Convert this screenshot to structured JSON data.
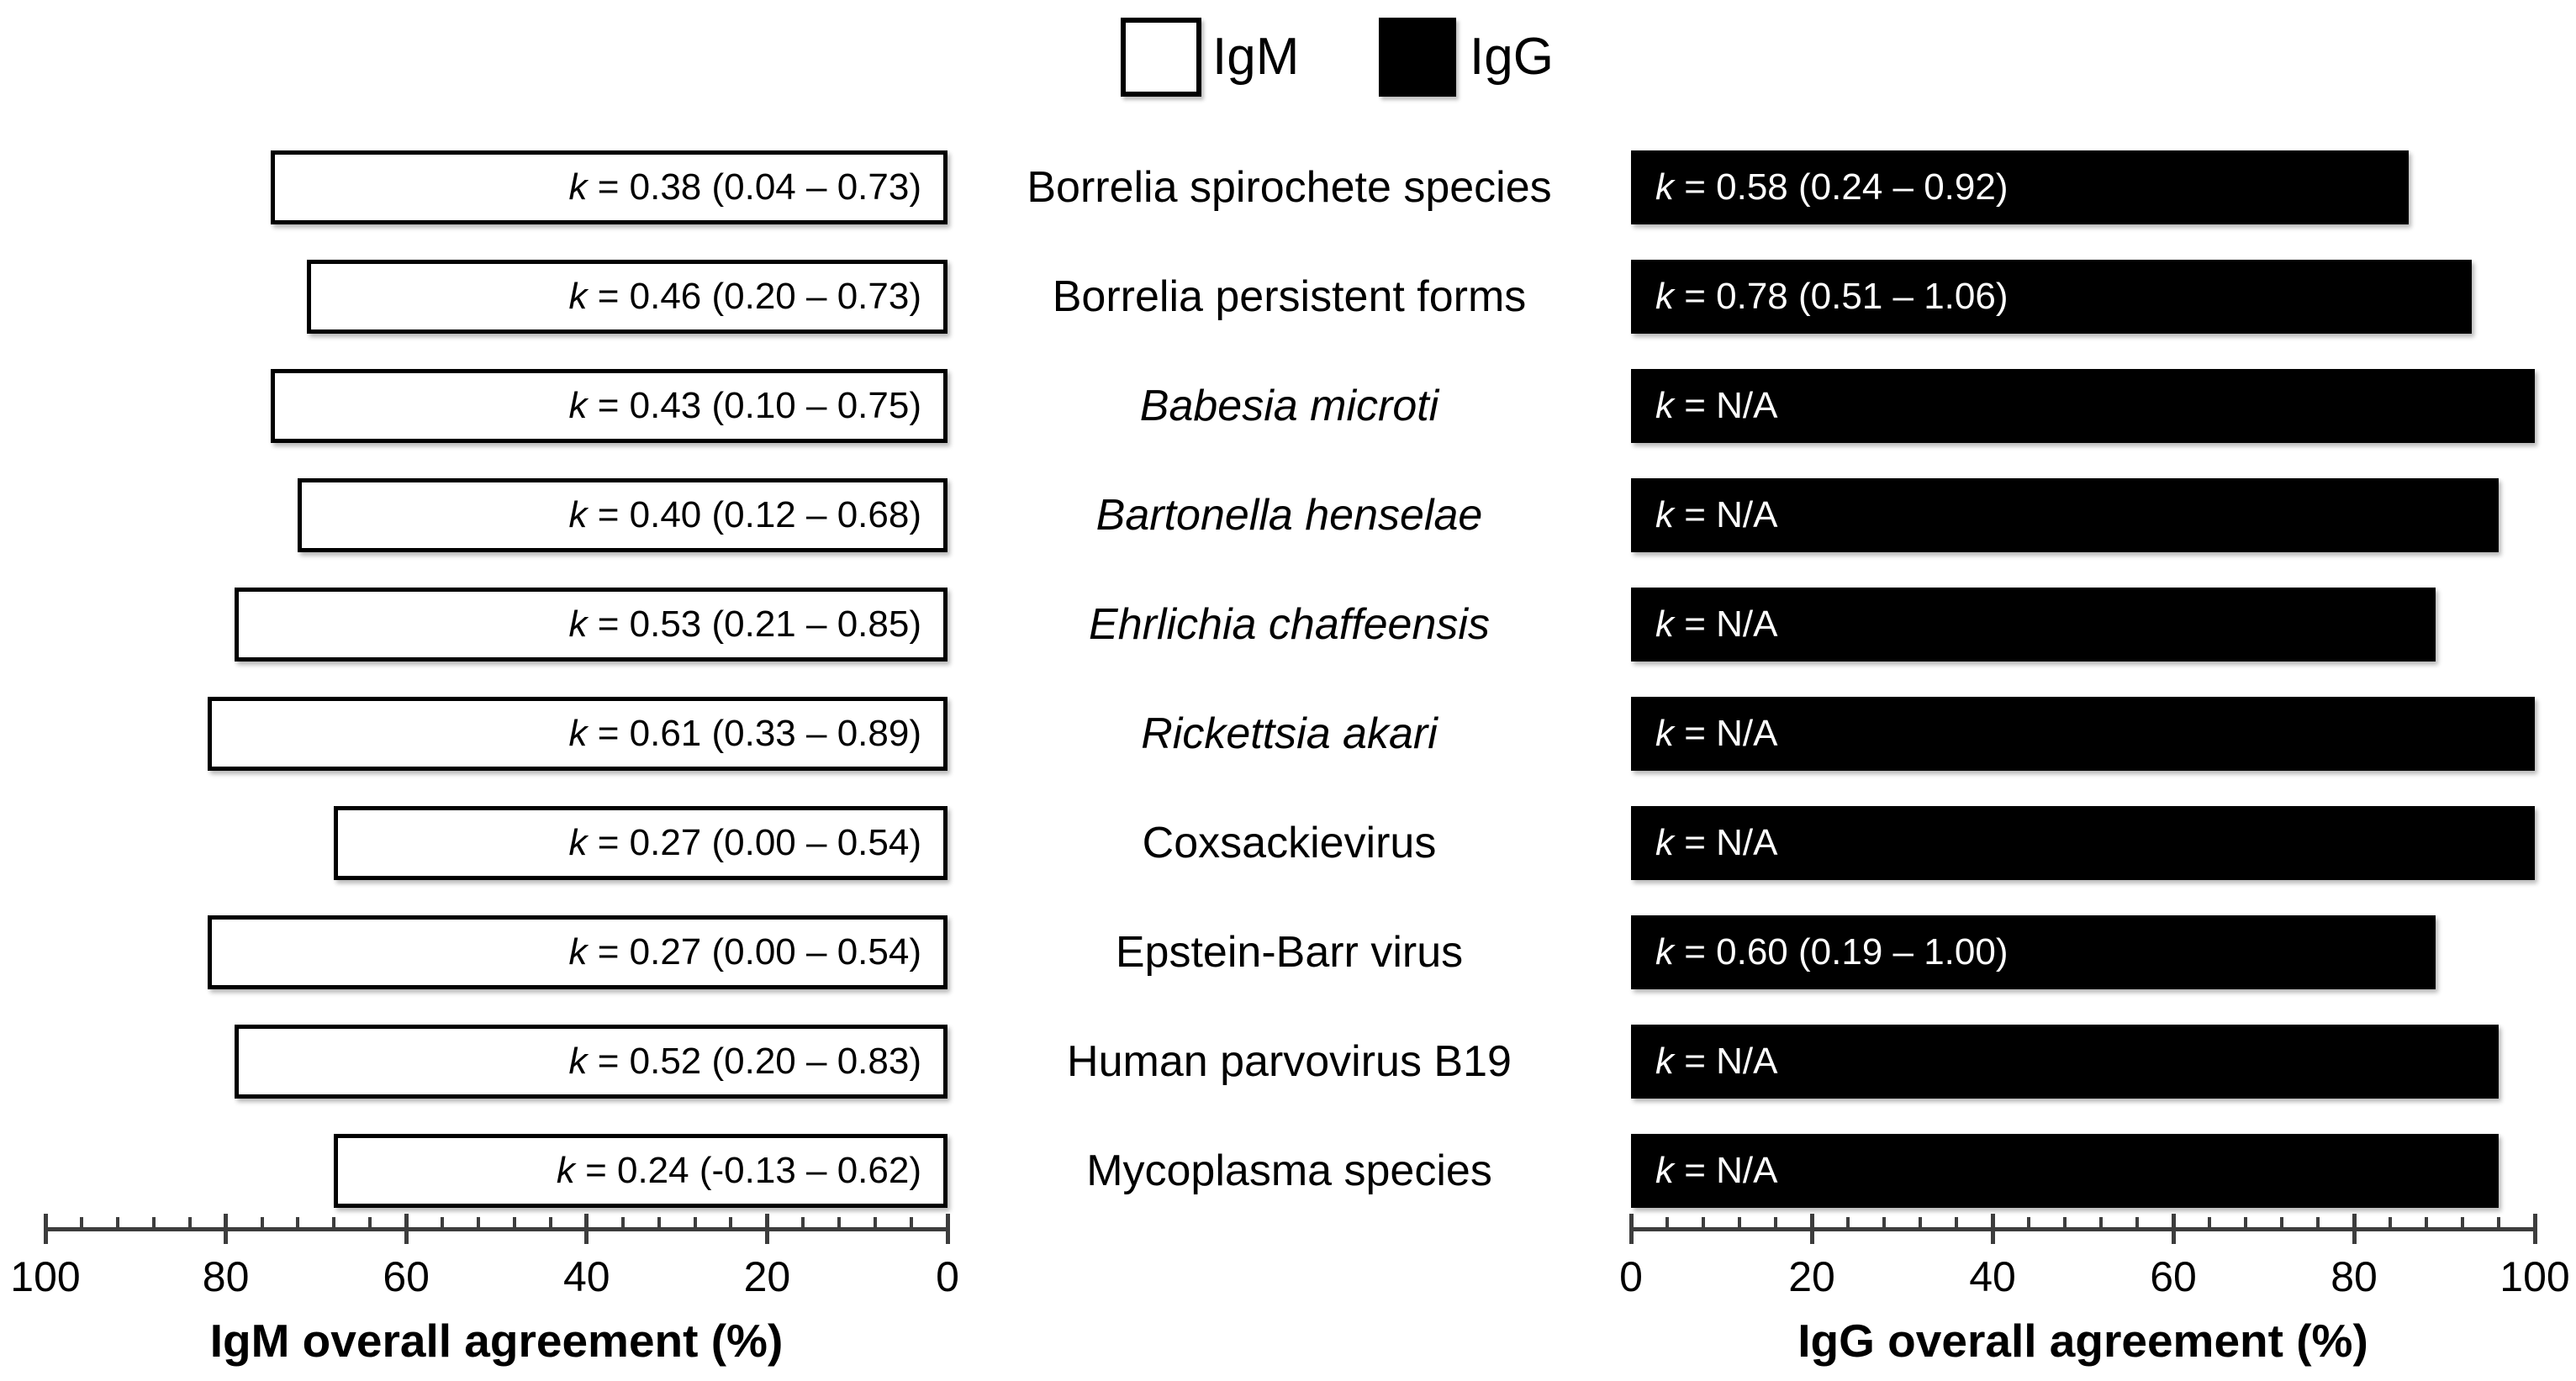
{
  "legend": {
    "items": [
      {
        "label": "IgM",
        "fill": "#ffffff"
      },
      {
        "label": "IgG",
        "fill": "#000000"
      }
    ]
  },
  "colors": {
    "igm_bar_fill": "#ffffff",
    "igg_bar_fill": "#000000",
    "bar_border": "#000000",
    "axis": "#3d3d3d",
    "igm_k_text": "#000000",
    "igg_k_text": "#ffffff"
  },
  "chart_data": {
    "type": "bar",
    "subtype": "back-to-back horizontal (butterfly)",
    "grid": false,
    "legend_position": "top-center",
    "axes": {
      "left": {
        "title": "IgM overall agreement (%)",
        "tick_labels": [
          "100",
          "80",
          "60",
          "40",
          "20",
          "0"
        ],
        "range": [
          0,
          100
        ],
        "reversed": true,
        "minor_tick_step": 4
      },
      "right": {
        "title": "IgG overall agreement (%)",
        "tick_labels": [
          "0",
          "20",
          "40",
          "60",
          "80",
          "100"
        ],
        "range": [
          0,
          100
        ],
        "reversed": false,
        "minor_tick_step": 4
      }
    },
    "rows": [
      {
        "label": "Borrelia spirochete species",
        "italic": false,
        "igm_pct": 75,
        "igm_k": "k = 0.38 (0.04 – 0.73)",
        "igg_pct": 86,
        "igg_k": "k = 0.58 (0.24 – 0.92)"
      },
      {
        "label": "Borrelia persistent forms",
        "italic": false,
        "igm_pct": 71,
        "igm_k": "k = 0.46 (0.20 – 0.73)",
        "igg_pct": 93,
        "igg_k": "k = 0.78 (0.51 – 1.06)"
      },
      {
        "label": "Babesia microti",
        "italic": true,
        "igm_pct": 75,
        "igm_k": "k = 0.43 (0.10 – 0.75)",
        "igg_pct": 100,
        "igg_k": "k = N/A"
      },
      {
        "label": "Bartonella henselae",
        "italic": true,
        "igm_pct": 72,
        "igm_k": "k = 0.40 (0.12 – 0.68)",
        "igg_pct": 96,
        "igg_k": "k = N/A"
      },
      {
        "label": "Ehrlichia chaffeensis",
        "italic": true,
        "igm_pct": 79,
        "igm_k": "k = 0.53 (0.21 – 0.85)",
        "igg_pct": 89,
        "igg_k": "k = N/A"
      },
      {
        "label": "Rickettsia akari",
        "italic": true,
        "igm_pct": 82,
        "igm_k": "k = 0.61 (0.33 – 0.89)",
        "igg_pct": 100,
        "igg_k": "k = N/A"
      },
      {
        "label": "Coxsackievirus",
        "italic": false,
        "igm_pct": 68,
        "igm_k": "k = 0.27 (0.00 – 0.54)",
        "igg_pct": 100,
        "igg_k": "k = N/A"
      },
      {
        "label": "Epstein-Barr virus",
        "italic": false,
        "igm_pct": 82,
        "igm_k": "k = 0.27 (0.00 – 0.54)",
        "igg_pct": 89,
        "igg_k": "k = 0.60 (0.19 – 1.00)"
      },
      {
        "label": "Human parvovirus B19",
        "italic": false,
        "igm_pct": 79,
        "igm_k": "k = 0.52 (0.20 – 0.83)",
        "igg_pct": 96,
        "igg_k": "k = N/A"
      },
      {
        "label": "Mycoplasma species",
        "italic": false,
        "igm_pct": 68,
        "igm_k": "k = 0.24 (-0.13 – 0.62)",
        "igg_pct": 96,
        "igg_k": "k = N/A"
      }
    ]
  }
}
